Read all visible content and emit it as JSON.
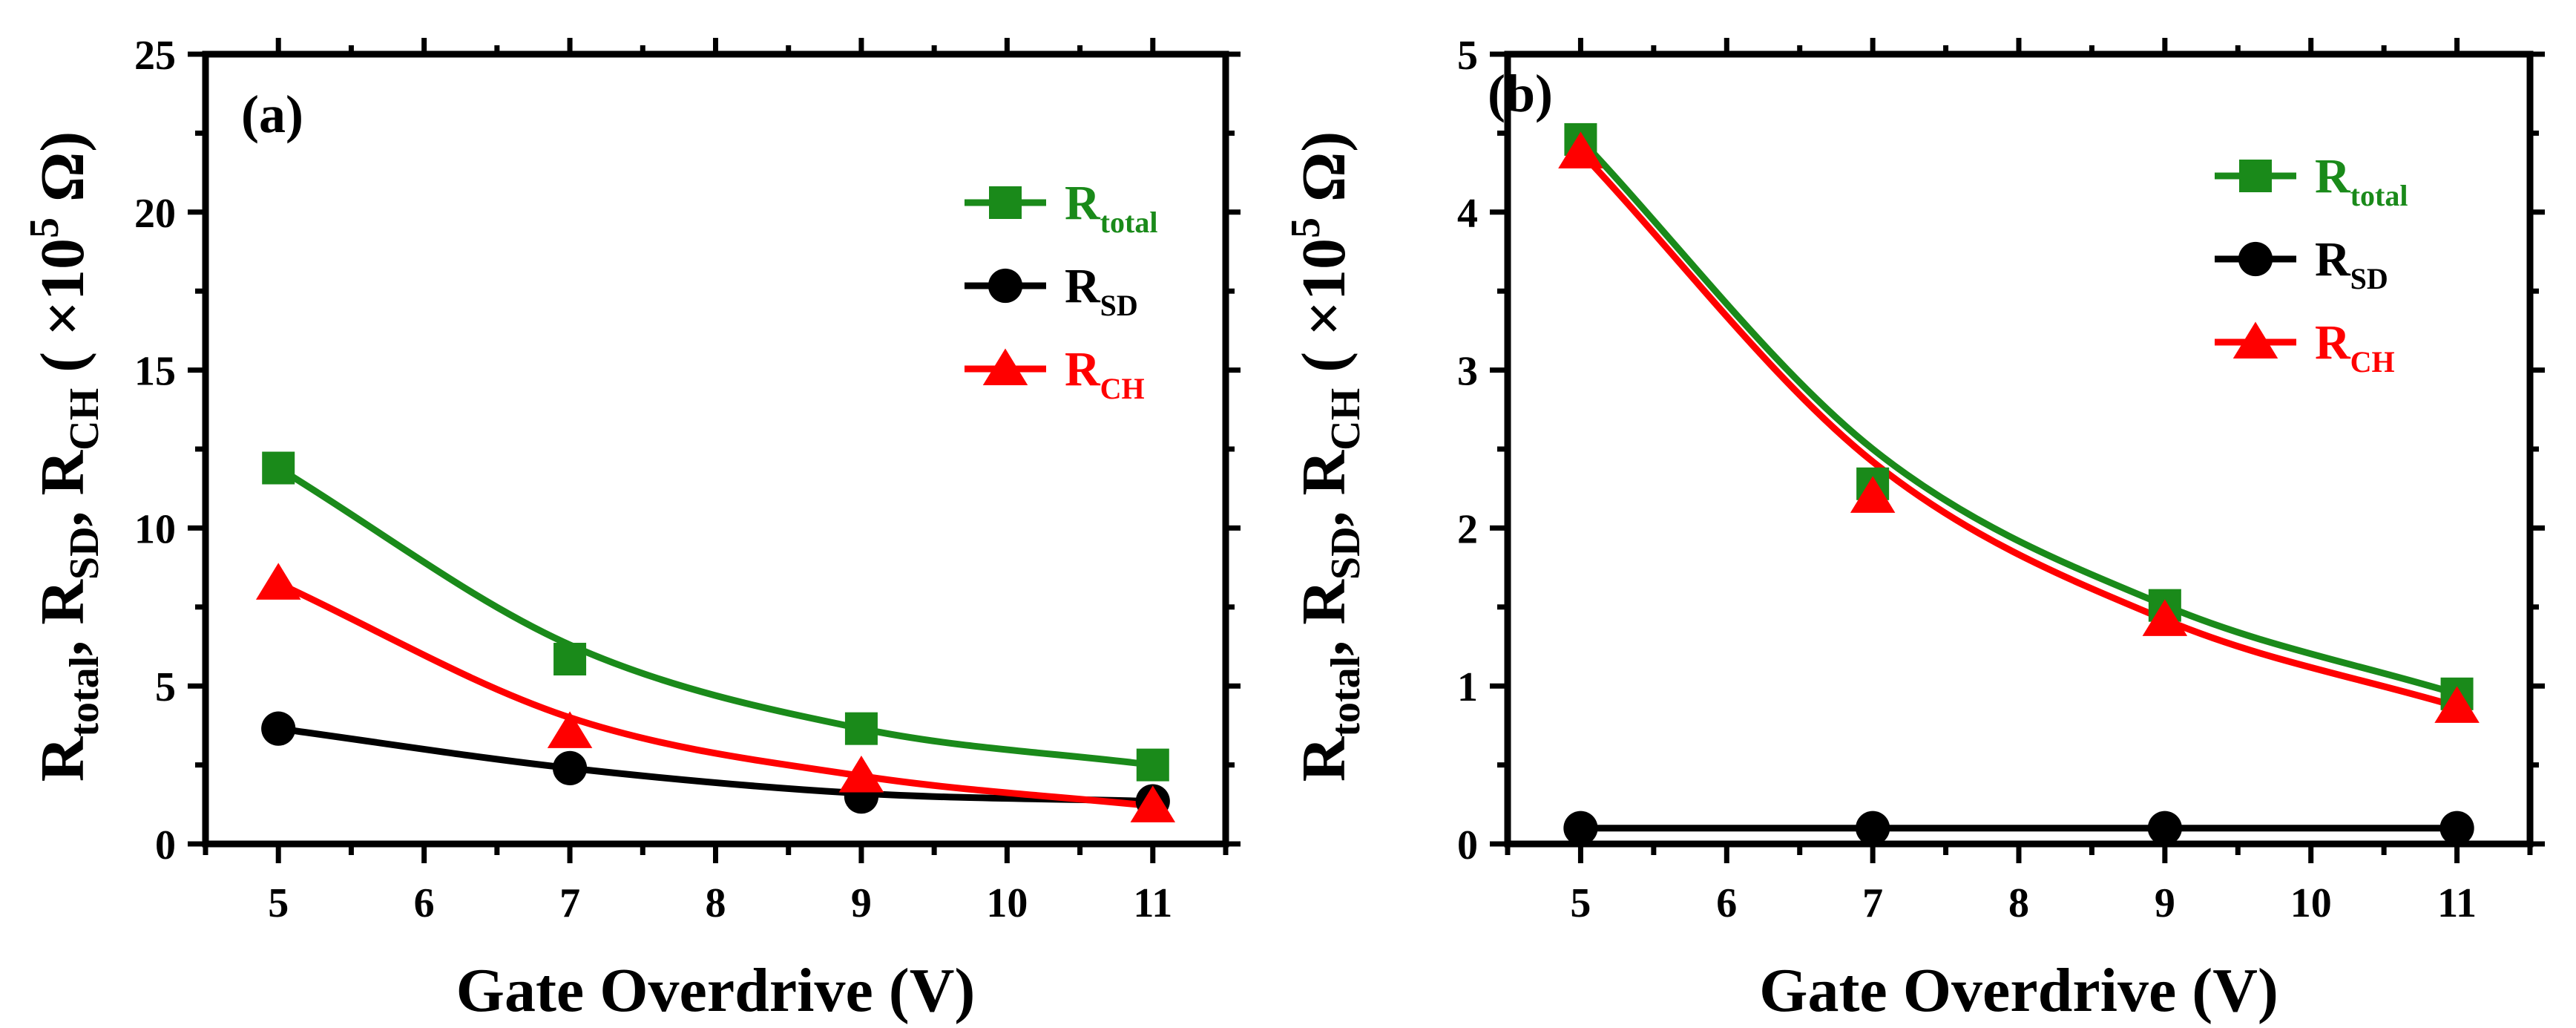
{
  "chart_data": [
    {
      "type": "line",
      "panel_label": "(a)",
      "x": [
        5,
        7,
        9,
        11
      ],
      "xlabel": "Gate Overdrive (V)",
      "ylabel": {
        "parts": [
          "R",
          "total",
          ", R",
          "SD",
          ", R",
          "CH",
          " ( ×10",
          "5",
          " Ω)"
        ]
      },
      "xlim": [
        4.5,
        11.5
      ],
      "ylim": [
        0,
        25
      ],
      "xticks": [
        5,
        6,
        7,
        8,
        9,
        10,
        11
      ],
      "yticks": [
        0,
        5,
        10,
        15,
        20,
        25
      ],
      "legend_position": "top-right",
      "series": [
        {
          "name": "R_total",
          "label_main": "R",
          "label_sub": "total",
          "marker": "square",
          "color": "#1a8a1a",
          "values": [
            11.9,
            5.85,
            3.65,
            2.5
          ],
          "fit": [
            11.9,
            6.3,
            3.65,
            2.5
          ]
        },
        {
          "name": "R_SD",
          "label_main": "R",
          "label_sub": "SD",
          "marker": "circle",
          "color": "#000000",
          "values": [
            3.65,
            2.4,
            1.5,
            1.35
          ],
          "fit": [
            3.65,
            2.4,
            1.6,
            1.35
          ]
        },
        {
          "name": "R_CH",
          "label_main": "R",
          "label_sub": "CH",
          "marker": "triangle",
          "color": "#ff0000",
          "values": [
            8.25,
            3.55,
            2.15,
            1.2
          ],
          "fit": [
            8.25,
            4.0,
            2.15,
            1.2
          ]
        }
      ]
    },
    {
      "type": "line",
      "panel_label": "(b)",
      "x": [
        5,
        7,
        9,
        11
      ],
      "xlabel": "Gate Overdrive (V)",
      "ylabel": {
        "parts": [
          "R",
          "total",
          ", R",
          "SD",
          ", R",
          "CH",
          " ( ×10",
          "5",
          " Ω)"
        ]
      },
      "xlim": [
        4.5,
        11.5
      ],
      "ylim": [
        0,
        5
      ],
      "xticks": [
        5,
        6,
        7,
        8,
        9,
        10,
        11
      ],
      "yticks": [
        0,
        1,
        2,
        3,
        4,
        5
      ],
      "legend_position": "top-right",
      "series": [
        {
          "name": "R_total",
          "label_main": "R",
          "label_sub": "total",
          "marker": "square",
          "color": "#1a8a1a",
          "values": [
            4.46,
            2.28,
            1.51,
            0.95
          ],
          "fit": [
            4.46,
            2.5,
            1.51,
            0.95
          ]
        },
        {
          "name": "R_SD",
          "label_main": "R",
          "label_sub": "SD",
          "marker": "circle",
          "color": "#000000",
          "values": [
            0.1,
            0.1,
            0.1,
            0.1
          ],
          "fit": [
            0.1,
            0.1,
            0.1,
            0.1
          ]
        },
        {
          "name": "R_CH",
          "label_main": "R",
          "label_sub": "CH",
          "marker": "triangle",
          "color": "#ff0000",
          "values": [
            4.38,
            2.2,
            1.42,
            0.87
          ],
          "fit": [
            4.38,
            2.42,
            1.42,
            0.87
          ]
        }
      ]
    }
  ]
}
